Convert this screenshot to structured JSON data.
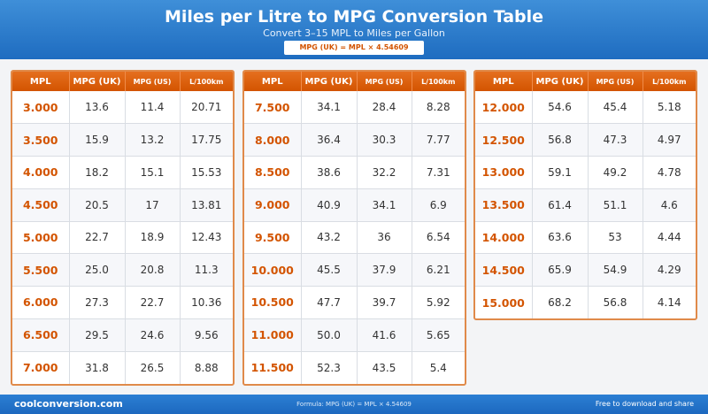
{
  "header": {
    "title": "Miles per Litre to MPG Conversion Table",
    "subtitle": "Convert 3–15 MPL to Miles per Gallon",
    "formula": "MPG (UK) = MPL × 4.54609"
  },
  "columns": [
    "MPL",
    "MPG (UK)",
    "MPG (US)",
    "L/100km"
  ],
  "panels": [
    {
      "rows": [
        {
          "mpl": "3.000",
          "uk": "13.6",
          "us": "11.4",
          "l100": "20.71"
        },
        {
          "mpl": "3.500",
          "uk": "15.9",
          "us": "13.2",
          "l100": "17.75"
        },
        {
          "mpl": "4.000",
          "uk": "18.2",
          "us": "15.1",
          "l100": "15.53"
        },
        {
          "mpl": "4.500",
          "uk": "20.5",
          "us": "17",
          "l100": "13.81"
        },
        {
          "mpl": "5.000",
          "uk": "22.7",
          "us": "18.9",
          "l100": "12.43"
        },
        {
          "mpl": "5.500",
          "uk": "25.0",
          "us": "20.8",
          "l100": "11.3"
        },
        {
          "mpl": "6.000",
          "uk": "27.3",
          "us": "22.7",
          "l100": "10.36"
        },
        {
          "mpl": "6.500",
          "uk": "29.5",
          "us": "24.6",
          "l100": "9.56"
        },
        {
          "mpl": "7.000",
          "uk": "31.8",
          "us": "26.5",
          "l100": "8.88"
        }
      ]
    },
    {
      "rows": [
        {
          "mpl": "7.500",
          "uk": "34.1",
          "us": "28.4",
          "l100": "8.28"
        },
        {
          "mpl": "8.000",
          "uk": "36.4",
          "us": "30.3",
          "l100": "7.77"
        },
        {
          "mpl": "8.500",
          "uk": "38.6",
          "us": "32.2",
          "l100": "7.31"
        },
        {
          "mpl": "9.000",
          "uk": "40.9",
          "us": "34.1",
          "l100": "6.9"
        },
        {
          "mpl": "9.500",
          "uk": "43.2",
          "us": "36",
          "l100": "6.54"
        },
        {
          "mpl": "10.000",
          "uk": "45.5",
          "us": "37.9",
          "l100": "6.21"
        },
        {
          "mpl": "10.500",
          "uk": "47.7",
          "us": "39.7",
          "l100": "5.92"
        },
        {
          "mpl": "11.000",
          "uk": "50.0",
          "us": "41.6",
          "l100": "5.65"
        },
        {
          "mpl": "11.500",
          "uk": "52.3",
          "us": "43.5",
          "l100": "5.4"
        }
      ]
    },
    {
      "rows": [
        {
          "mpl": "12.000",
          "uk": "54.6",
          "us": "45.4",
          "l100": "5.18"
        },
        {
          "mpl": "12.500",
          "uk": "56.8",
          "us": "47.3",
          "l100": "4.97"
        },
        {
          "mpl": "13.000",
          "uk": "59.1",
          "us": "49.2",
          "l100": "4.78"
        },
        {
          "mpl": "13.500",
          "uk": "61.4",
          "us": "51.1",
          "l100": "4.6"
        },
        {
          "mpl": "14.000",
          "uk": "63.6",
          "us": "53",
          "l100": "4.44"
        },
        {
          "mpl": "14.500",
          "uk": "65.9",
          "us": "54.9",
          "l100": "4.29"
        },
        {
          "mpl": "15.000",
          "uk": "68.2",
          "us": "56.8",
          "l100": "4.14"
        }
      ]
    }
  ],
  "footer": {
    "site": "coolconversion.com",
    "formula": "Formula: MPG (UK) = MPL × 4.54609",
    "note": "Free to download and share"
  },
  "colors": {
    "header_blue": "#1e6cc0",
    "accent_orange": "#d35400",
    "border_orange": "#e08a4a"
  }
}
